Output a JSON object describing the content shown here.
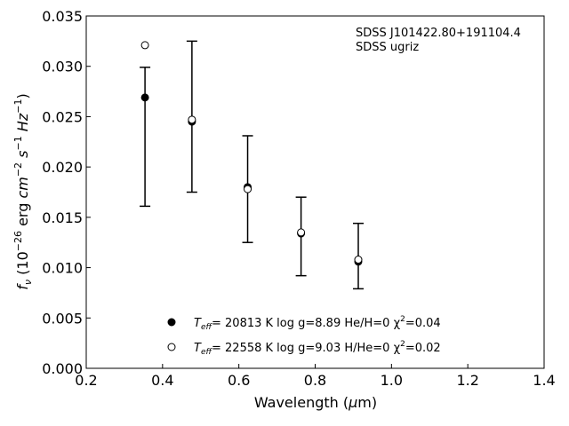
{
  "chart_data": {
    "type": "scatter",
    "title": "",
    "xlabel": "Wavelength (μm)",
    "ylabel": "f_ν (10^-26 erg cm^-2 s^-1 Hz^-1)",
    "xlim": [
      0.2,
      1.4
    ],
    "ylim": [
      0.0,
      0.035
    ],
    "xticks": [
      0.2,
      0.4,
      0.6,
      0.8,
      1.0,
      1.2,
      1.4
    ],
    "xtick_labels": [
      "0.2",
      "0.4",
      "0.6",
      "0.8",
      "1.0",
      "1.2",
      "1.4"
    ],
    "yticks": [
      0.0,
      0.005,
      0.01,
      0.015,
      0.02,
      0.025,
      0.03,
      0.035
    ],
    "ytick_labels": [
      "0.000",
      "0.005",
      "0.010",
      "0.015",
      "0.020",
      "0.025",
      "0.030",
      "0.035"
    ],
    "grid": false,
    "annotations": [
      "SDSS J101422.80+191104.4",
      "SDSS ugriz"
    ],
    "observed": {
      "x": [
        0.354,
        0.477,
        0.623,
        0.763,
        0.913
      ],
      "y": [
        0.027,
        0.0246,
        0.018,
        0.0135,
        0.0106
      ],
      "yerr_low": [
        0.0161,
        0.0175,
        0.0125,
        0.0092,
        0.0079
      ],
      "yerr_high": [
        0.0299,
        0.0325,
        0.0231,
        0.017,
        0.0144
      ]
    },
    "series": [
      {
        "name": "T_eff= 20813 K  log g=8.89  He/H=0  χ²=0.04",
        "marker": "filled-circle",
        "x": [
          0.354,
          0.477,
          0.623,
          0.763,
          0.913
        ],
        "y": [
          0.0269,
          0.0245,
          0.018,
          0.0134,
          0.0106
        ]
      },
      {
        "name": "T_eff= 22558 K  log g=9.03  H/He=0  χ²=0.02",
        "marker": "open-circle",
        "x": [
          0.354,
          0.477,
          0.623,
          0.763,
          0.913
        ],
        "y": [
          0.0321,
          0.0247,
          0.0178,
          0.0135,
          0.0108
        ]
      }
    ],
    "legend": {
      "placement": "bottom-center",
      "entries": [
        {
          "prefix": "T",
          "sub": "eff",
          "rest": "= 20813 K  log g=8.89  He/H=0  χ",
          "sup": "2",
          "tail": "=0.04"
        },
        {
          "prefix": "T",
          "sub": "eff",
          "rest": "= 22558 K  log g=9.03  H/He=0  χ",
          "sup": "2",
          "tail": "=0.02"
        }
      ]
    },
    "colors": {
      "marker": "#000000",
      "errorbar": "#000000"
    }
  }
}
